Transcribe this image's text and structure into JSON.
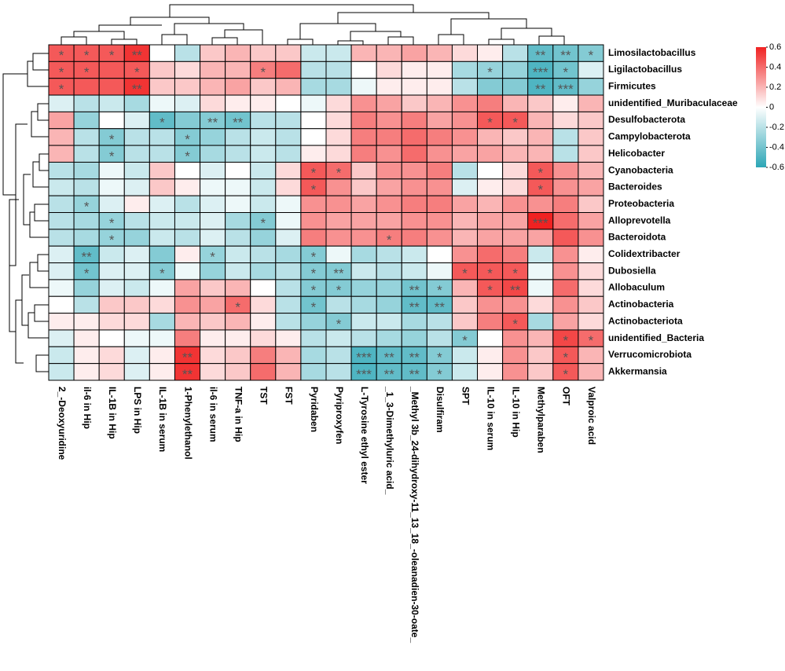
{
  "chart_data": {
    "type": "heatmap",
    "columns": [
      "2_-Deoxyuridine",
      "il-6 in Hip",
      "IL-1B in Hip",
      "LPS in Hip",
      "IL-1B in serum",
      "1-Phenylethanol",
      "il-6 in serum",
      "TNF-a in Hip",
      "TST",
      "FST",
      "Pyridaben",
      "Pyriproxyfen",
      "L-Tyrosine ethyl ester",
      "_1_3-Dimethyluric acid_",
      "_Methyl 3b_24-dihydroxy-11_13_18_-oleanadien-30-oate_",
      "Disulfiram",
      "SPT",
      "IL-10 in serum",
      "IL-10 in Hip",
      "Methylparaben",
      "OFT",
      "Valproic acid"
    ],
    "rows": [
      "Limosilactobacillus",
      "Ligilactobacillus",
      "Firmicutes",
      "unidentified_Muribaculaceae",
      "Desulfobacterota",
      "Campylobacterota",
      "Helicobacter",
      "Cyanobacteria",
      "Bacteroides",
      "Proteobacteria",
      "Alloprevotella",
      "Bacteroidota",
      "Colidextribacter",
      "Dubosiella",
      "Allobaculum",
      "Actinobacteria",
      "Actinobacteriota",
      "unidentified_Bacteria",
      "Verrucomicrobiota",
      "Akkermansia"
    ],
    "values": [
      [
        0.45,
        0.45,
        0.45,
        0.55,
        0.0,
        -0.2,
        0.15,
        0.2,
        0.15,
        0.15,
        -0.15,
        -0.15,
        0.2,
        0.2,
        0.25,
        0.2,
        0.1,
        0.05,
        -0.2,
        -0.45,
        -0.4,
        -0.35
      ],
      [
        0.45,
        0.45,
        0.45,
        0.45,
        0.15,
        0.1,
        0.2,
        0.2,
        0.35,
        0.4,
        -0.2,
        -0.2,
        0.0,
        0.1,
        0.05,
        0.05,
        -0.25,
        -0.3,
        -0.3,
        -0.5,
        -0.4,
        -0.1
      ],
      [
        0.45,
        0.45,
        0.45,
        0.55,
        0.15,
        0.15,
        0.2,
        0.25,
        0.15,
        0.2,
        -0.25,
        -0.25,
        -0.05,
        0.05,
        0.05,
        0.05,
        -0.2,
        -0.35,
        -0.35,
        -0.5,
        -0.45,
        -0.3
      ],
      [
        -0.1,
        -0.2,
        -0.15,
        -0.25,
        -0.05,
        -0.1,
        0.1,
        0.05,
        0.05,
        0.0,
        -0.05,
        0.1,
        0.3,
        0.25,
        0.15,
        0.2,
        0.3,
        0.35,
        0.2,
        0.15,
        0.05,
        0.2
      ],
      [
        0.25,
        -0.3,
        0.0,
        -0.1,
        -0.45,
        -0.35,
        -0.35,
        -0.4,
        -0.2,
        -0.2,
        0.0,
        0.1,
        0.35,
        0.3,
        0.35,
        0.25,
        0.3,
        0.45,
        0.45,
        0.2,
        0.1,
        0.15
      ],
      [
        0.2,
        -0.2,
        -0.35,
        -0.2,
        -0.2,
        -0.35,
        -0.3,
        -0.2,
        -0.15,
        -0.2,
        0.0,
        0.1,
        0.35,
        0.35,
        0.4,
        0.35,
        0.3,
        0.2,
        0.15,
        0.2,
        -0.2,
        0.15
      ],
      [
        0.2,
        -0.2,
        -0.35,
        -0.2,
        -0.2,
        -0.35,
        -0.25,
        -0.2,
        -0.15,
        -0.2,
        0.05,
        0.1,
        0.35,
        0.3,
        0.4,
        0.3,
        0.25,
        0.25,
        0.2,
        0.2,
        -0.2,
        0.15
      ],
      [
        -0.2,
        -0.25,
        -0.05,
        -0.15,
        0.15,
        0.0,
        -0.1,
        0.0,
        -0.15,
        0.1,
        0.45,
        0.4,
        0.15,
        0.3,
        0.3,
        0.35,
        -0.2,
        0.0,
        0.1,
        0.45,
        0.3,
        0.2
      ],
      [
        -0.15,
        -0.2,
        -0.05,
        -0.1,
        0.15,
        0.05,
        -0.05,
        -0.05,
        -0.15,
        0.1,
        0.45,
        0.3,
        0.15,
        0.25,
        0.3,
        0.3,
        -0.1,
        0.05,
        0.1,
        0.45,
        0.3,
        0.25
      ],
      [
        -0.2,
        -0.3,
        -0.1,
        0.05,
        -0.1,
        -0.2,
        -0.1,
        -0.05,
        -0.15,
        -0.05,
        0.3,
        0.3,
        0.25,
        0.3,
        0.35,
        0.35,
        0.25,
        0.2,
        0.3,
        0.3,
        0.35,
        0.15
      ],
      [
        -0.2,
        -0.25,
        -0.3,
        -0.2,
        -0.15,
        -0.15,
        -0.1,
        -0.25,
        -0.35,
        -0.05,
        0.3,
        0.25,
        0.25,
        0.25,
        0.3,
        0.3,
        0.2,
        0.25,
        0.25,
        0.6,
        0.4,
        0.25
      ],
      [
        -0.2,
        -0.25,
        -0.3,
        -0.3,
        -0.15,
        -0.2,
        -0.1,
        -0.2,
        -0.3,
        -0.1,
        0.35,
        0.3,
        0.3,
        0.35,
        0.35,
        0.3,
        0.2,
        0.25,
        0.25,
        0.25,
        0.45,
        0.3
      ],
      [
        -0.1,
        -0.45,
        -0.15,
        -0.1,
        -0.35,
        0.05,
        -0.3,
        -0.15,
        -0.2,
        -0.25,
        -0.35,
        -0.05,
        -0.25,
        -0.2,
        -0.15,
        0.0,
        0.3,
        0.4,
        0.35,
        -0.15,
        0.3,
        0.05
      ],
      [
        -0.1,
        -0.4,
        -0.1,
        -0.1,
        -0.35,
        -0.05,
        -0.3,
        -0.15,
        -0.25,
        -0.2,
        -0.35,
        -0.35,
        -0.15,
        -0.2,
        -0.15,
        -0.05,
        0.45,
        0.45,
        0.45,
        -0.05,
        0.3,
        0.1
      ],
      [
        -0.05,
        -0.3,
        -0.1,
        -0.15,
        -0.05,
        0.25,
        0.15,
        0.2,
        0.0,
        -0.2,
        -0.35,
        -0.35,
        -0.3,
        -0.3,
        -0.4,
        -0.35,
        0.2,
        0.45,
        0.5,
        -0.05,
        0.4,
        0.1
      ],
      [
        0.0,
        -0.2,
        0.15,
        0.15,
        0.1,
        0.3,
        0.25,
        0.4,
        0.1,
        -0.2,
        -0.4,
        -0.2,
        -0.25,
        -0.3,
        -0.45,
        -0.45,
        0.15,
        0.3,
        0.3,
        0.1,
        0.3,
        0.15
      ],
      [
        0.05,
        0.05,
        0.1,
        0.1,
        -0.25,
        0.2,
        0.15,
        0.2,
        0.05,
        -0.2,
        -0.3,
        -0.35,
        -0.15,
        -0.15,
        -0.25,
        -0.2,
        0.15,
        0.35,
        0.45,
        -0.25,
        0.25,
        0.1
      ],
      [
        -0.1,
        0.05,
        0.0,
        -0.05,
        -0.05,
        0.35,
        0.05,
        0.05,
        0.1,
        0.05,
        -0.2,
        -0.15,
        -0.2,
        -0.25,
        -0.3,
        -0.2,
        -0.35,
        0.0,
        0.3,
        0.2,
        0.5,
        0.4
      ],
      [
        -0.15,
        0.05,
        0.1,
        -0.1,
        0.05,
        0.55,
        0.1,
        0.15,
        0.35,
        0.2,
        -0.25,
        -0.2,
        -0.5,
        -0.45,
        -0.45,
        -0.35,
        -0.15,
        0.05,
        0.3,
        0.15,
        0.45,
        0.2
      ],
      [
        -0.15,
        0.05,
        0.1,
        -0.1,
        0.05,
        0.55,
        0.1,
        0.15,
        0.4,
        0.2,
        -0.25,
        -0.2,
        -0.5,
        -0.45,
        -0.45,
        -0.35,
        -0.15,
        0.05,
        0.3,
        0.15,
        0.45,
        0.2
      ]
    ],
    "stars": [
      [
        "*",
        "*",
        "*",
        "**",
        null,
        null,
        null,
        null,
        null,
        null,
        null,
        null,
        null,
        null,
        null,
        null,
        null,
        null,
        null,
        "**",
        "**",
        "*"
      ],
      [
        "*",
        "*",
        null,
        "*",
        null,
        null,
        null,
        null,
        "*",
        null,
        null,
        null,
        null,
        null,
        null,
        null,
        null,
        "*",
        null,
        "***",
        "*",
        null
      ],
      [
        "*",
        null,
        null,
        "**",
        null,
        null,
        null,
        null,
        null,
        null,
        null,
        null,
        null,
        null,
        null,
        null,
        null,
        null,
        null,
        "**",
        "***",
        null
      ],
      [
        null,
        null,
        null,
        null,
        null,
        null,
        null,
        null,
        null,
        null,
        null,
        null,
        null,
        null,
        null,
        null,
        null,
        null,
        null,
        null,
        null,
        null
      ],
      [
        null,
        null,
        null,
        null,
        "*",
        null,
        "**",
        "**",
        null,
        null,
        null,
        null,
        null,
        null,
        null,
        null,
        null,
        "*",
        "*",
        null,
        null,
        null
      ],
      [
        null,
        null,
        "*",
        null,
        null,
        "*",
        null,
        null,
        null,
        null,
        null,
        null,
        null,
        null,
        null,
        null,
        null,
        null,
        null,
        null,
        null,
        null
      ],
      [
        null,
        null,
        "*",
        null,
        null,
        "*",
        null,
        null,
        null,
        null,
        null,
        null,
        null,
        null,
        null,
        null,
        null,
        null,
        null,
        null,
        null,
        null
      ],
      [
        null,
        null,
        null,
        null,
        null,
        null,
        null,
        null,
        null,
        null,
        "*",
        "*",
        null,
        null,
        null,
        null,
        null,
        null,
        null,
        "*",
        null,
        null
      ],
      [
        null,
        null,
        null,
        null,
        null,
        null,
        null,
        null,
        null,
        null,
        "*",
        null,
        null,
        null,
        null,
        null,
        null,
        null,
        null,
        "*",
        null,
        null
      ],
      [
        null,
        "*",
        null,
        null,
        null,
        null,
        null,
        null,
        null,
        null,
        null,
        null,
        null,
        null,
        null,
        null,
        null,
        null,
        null,
        null,
        null,
        null
      ],
      [
        null,
        null,
        "*",
        null,
        null,
        null,
        null,
        null,
        "*",
        null,
        null,
        null,
        null,
        null,
        null,
        null,
        null,
        null,
        null,
        "***",
        null,
        null
      ],
      [
        null,
        null,
        "*",
        null,
        null,
        null,
        null,
        null,
        null,
        null,
        null,
        null,
        null,
        "*",
        null,
        null,
        null,
        null,
        null,
        null,
        null,
        null
      ],
      [
        null,
        "**",
        null,
        null,
        null,
        null,
        "*",
        null,
        null,
        null,
        "*",
        null,
        null,
        null,
        null,
        null,
        null,
        null,
        null,
        null,
        null,
        null
      ],
      [
        null,
        "*",
        null,
        null,
        "*",
        null,
        null,
        null,
        null,
        null,
        "*",
        "**",
        null,
        null,
        null,
        null,
        "*",
        "*",
        "*",
        null,
        null,
        null
      ],
      [
        null,
        null,
        null,
        null,
        null,
        null,
        null,
        null,
        null,
        null,
        "*",
        "*",
        null,
        null,
        "**",
        "*",
        null,
        "*",
        "**",
        null,
        null,
        null
      ],
      [
        null,
        null,
        null,
        null,
        null,
        null,
        null,
        "*",
        null,
        null,
        "*",
        null,
        null,
        null,
        "**",
        "**",
        null,
        null,
        null,
        null,
        null,
        null
      ],
      [
        null,
        null,
        null,
        null,
        null,
        null,
        null,
        null,
        null,
        null,
        null,
        "*",
        null,
        null,
        null,
        null,
        null,
        null,
        "*",
        null,
        null,
        null
      ],
      [
        null,
        null,
        null,
        null,
        null,
        null,
        null,
        null,
        null,
        null,
        null,
        null,
        null,
        null,
        null,
        null,
        "*",
        null,
        null,
        null,
        "*",
        "*"
      ],
      [
        null,
        null,
        null,
        null,
        null,
        "**",
        null,
        null,
        null,
        null,
        null,
        null,
        "***",
        "**",
        "**",
        "*",
        null,
        null,
        null,
        null,
        "*",
        null
      ],
      [
        null,
        null,
        null,
        null,
        null,
        "**",
        null,
        null,
        null,
        null,
        null,
        null,
        "***",
        "**",
        "**",
        "*",
        null,
        null,
        null,
        null,
        "*",
        null
      ]
    ],
    "colormap": [
      "#2ca6b6",
      "#ffffff",
      "#f02222"
    ],
    "clim": [
      -0.6,
      0.6
    ],
    "cticks": [
      0.6,
      0.4,
      0.2,
      0,
      -0.2,
      -0.4,
      -0.6
    ]
  }
}
